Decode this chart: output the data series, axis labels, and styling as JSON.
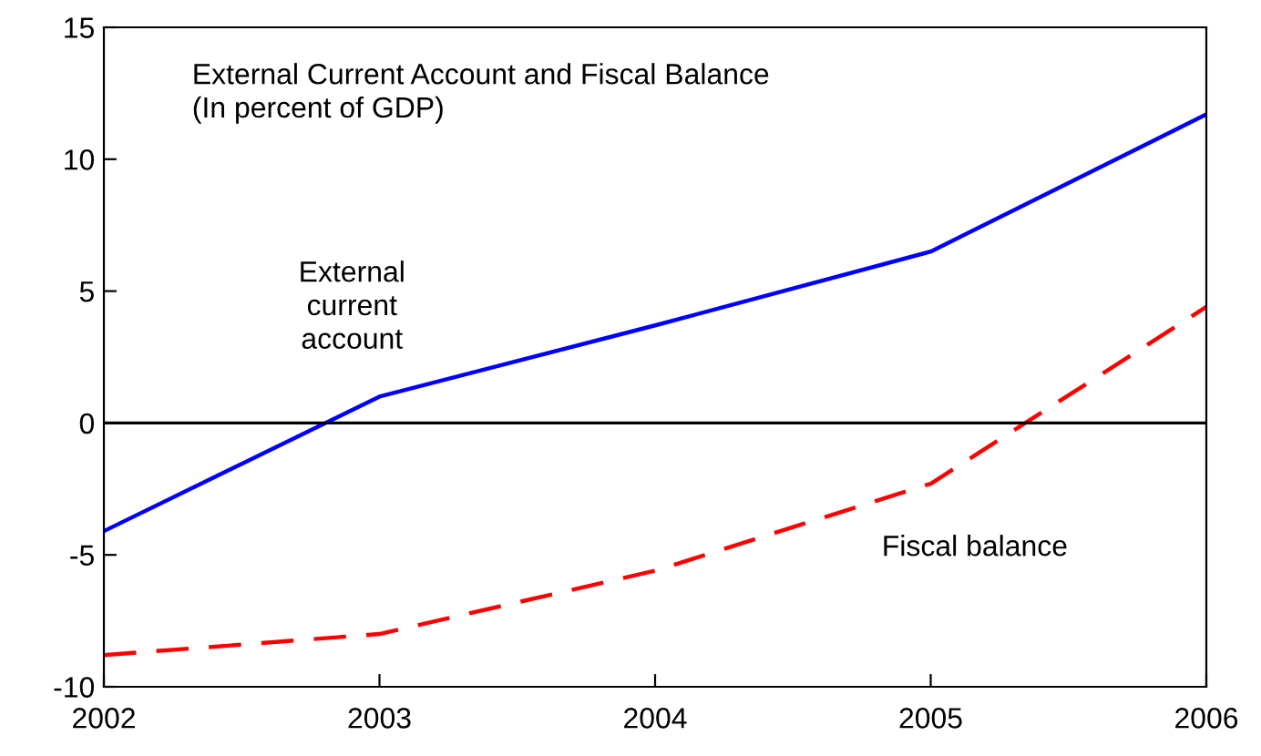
{
  "chart_data": {
    "type": "line",
    "title": "External Current Account and Fiscal Balance",
    "subtitle": "(In percent of GDP)",
    "x": [
      2002,
      2003,
      2004,
      2005,
      2006
    ],
    "series": [
      {
        "name": "External current account",
        "color": "#0000ff",
        "line_style": "solid",
        "values": [
          -4.1,
          1.0,
          3.7,
          6.5,
          11.7
        ]
      },
      {
        "name": "Fiscal balance",
        "color": "#ff0000",
        "line_style": "dashed",
        "values": [
          -8.8,
          -8.0,
          -5.6,
          -2.3,
          4.4
        ]
      }
    ],
    "xlim": [
      2002,
      2006
    ],
    "xticks": [
      2002,
      2003,
      2004,
      2005,
      2006
    ],
    "ylim": [
      -10,
      15
    ],
    "yticks": [
      -10,
      -5,
      0,
      5,
      10,
      15
    ],
    "ref_lines": [
      {
        "axis": "y",
        "value": 0,
        "color": "#000000"
      }
    ],
    "grid": false,
    "legend": false
  }
}
